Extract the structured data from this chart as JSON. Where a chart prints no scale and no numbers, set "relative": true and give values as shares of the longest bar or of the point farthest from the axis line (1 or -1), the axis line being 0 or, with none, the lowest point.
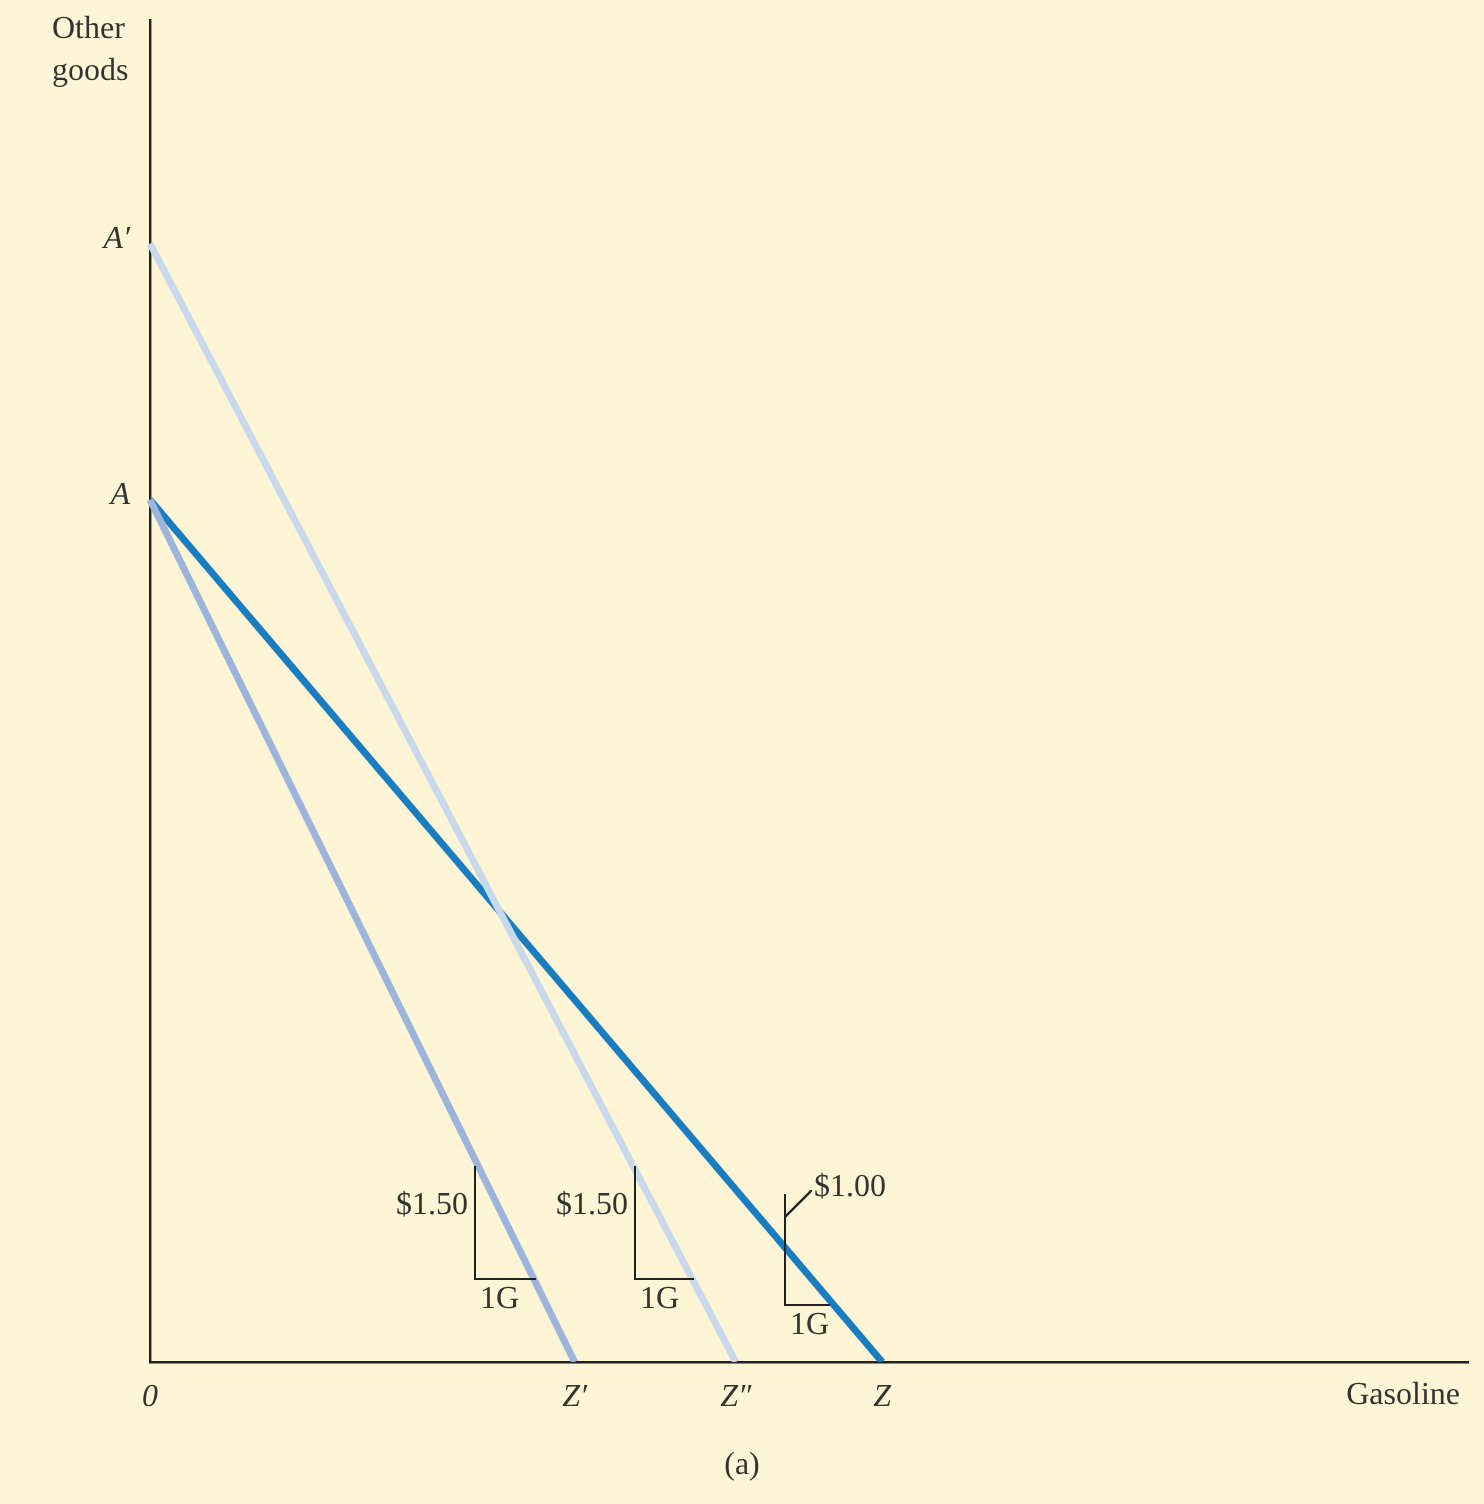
{
  "chart_data": {
    "type": "line",
    "relative": true,
    "xlabel": "Gasoline",
    "ylabel": "Other goods",
    "legend": false,
    "grid": false,
    "marker": "none",
    "line_style": "solid",
    "categories": [
      "0",
      null,
      null,
      null,
      null,
      null,
      null,
      null,
      null,
      null,
      null,
      null,
      null,
      null,
      null,
      null,
      null,
      null,
      null,
      null,
      null,
      null,
      null,
      null,
      null,
      null,
      null,
      null,
      null,
      "Z′",
      null,
      null,
      null,
      null,
      null,
      null,
      null,
      null,
      null,
      null,
      "Z″",
      null,
      null,
      null,
      null,
      null,
      null,
      null,
      null,
      null,
      "Z",
      null,
      null,
      null,
      null,
      null,
      null,
      null,
      null,
      null,
      null,
      null,
      null,
      null,
      null,
      null,
      null,
      null,
      null,
      null,
      null,
      null,
      null,
      null,
      null,
      null,
      null,
      null,
      null,
      null,
      null,
      null,
      null,
      null,
      null,
      null,
      null,
      null,
      null,
      null,
      null
    ],
    "series": [
      {
        "color": "#c9d9ec",
        "values": [
          1,
          null,
          null,
          null,
          null,
          null,
          null,
          null,
          null,
          null,
          null,
          null,
          null,
          null,
          null,
          null,
          null,
          null,
          null,
          null,
          null,
          null,
          null,
          null,
          null,
          null,
          null,
          null,
          null,
          null,
          null,
          null,
          null,
          null,
          null,
          null,
          null,
          null,
          null,
          null,
          0,
          null,
          null,
          null,
          null,
          null,
          null,
          null,
          null,
          null,
          null,
          null,
          null,
          null,
          null,
          null,
          null,
          null,
          null,
          null,
          null,
          null,
          null,
          null,
          null,
          null,
          null,
          null,
          null,
          null,
          null,
          null,
          null,
          null,
          null,
          null,
          null,
          null,
          null,
          null,
          null,
          null,
          null,
          null,
          null,
          null,
          null,
          null,
          null,
          null,
          null
        ]
      },
      {
        "color": "#9db4dc",
        "values": [
          0.771,
          null,
          null,
          null,
          null,
          null,
          null,
          null,
          null,
          null,
          null,
          null,
          null,
          null,
          null,
          null,
          null,
          null,
          null,
          null,
          null,
          null,
          null,
          null,
          null,
          null,
          null,
          null,
          null,
          0,
          null,
          null,
          null,
          null,
          null,
          null,
          null,
          null,
          null,
          null,
          null,
          null,
          null,
          null,
          null,
          null,
          null,
          null,
          null,
          null,
          null,
          null,
          null,
          null,
          null,
          null,
          null,
          null,
          null,
          null,
          null,
          null,
          null,
          null,
          null,
          null,
          null,
          null,
          null,
          null,
          null,
          null,
          null,
          null,
          null,
          null,
          null,
          null,
          null,
          null,
          null,
          null,
          null,
          null,
          null,
          null,
          null,
          null,
          null,
          null,
          null
        ]
      },
      {
        "color": "#1a7dc0",
        "values": [
          0.771,
          null,
          null,
          null,
          null,
          null,
          null,
          null,
          null,
          null,
          null,
          null,
          null,
          null,
          null,
          null,
          null,
          null,
          null,
          null,
          null,
          null,
          null,
          null,
          null,
          null,
          null,
          null,
          null,
          null,
          null,
          null,
          null,
          null,
          null,
          null,
          null,
          null,
          null,
          null,
          null,
          null,
          null,
          null,
          null,
          null,
          null,
          null,
          null,
          null,
          0,
          null,
          null,
          null,
          null,
          null,
          null,
          null,
          null,
          null,
          null,
          null,
          null,
          null,
          null,
          null,
          null,
          null,
          null,
          null,
          null,
          null,
          null,
          null,
          null,
          null,
          null,
          null,
          null,
          null,
          null,
          null,
          null,
          null,
          null,
          null,
          null,
          null,
          null,
          null,
          null
        ]
      }
    ],
    "annotations": [
      {
        "text": "A′",
        "x": "0",
        "y": 1
      },
      {
        "text": "A",
        "x": "0",
        "y": 0.771
      },
      "$1.50",
      "1G",
      "$1.50",
      "1G",
      "$1.00",
      "1G",
      "(a)"
    ]
  }
}
